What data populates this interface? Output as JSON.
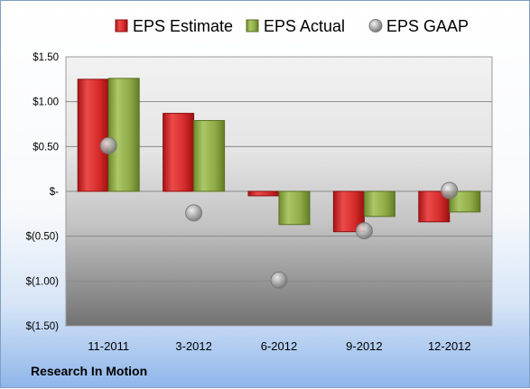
{
  "company_label": "Research In Motion",
  "chart_data": {
    "type": "bar",
    "categories": [
      "11-2011",
      "3-2012",
      "6-2012",
      "9-2012",
      "12-2012"
    ],
    "series": [
      {
        "name": "EPS Estimate",
        "kind": "bar",
        "color": "#d42a2a",
        "values": [
          1.25,
          0.87,
          -0.05,
          -0.45,
          -0.34
        ]
      },
      {
        "name": "EPS Actual",
        "kind": "bar",
        "color": "#8eab47",
        "values": [
          1.26,
          0.79,
          -0.37,
          -0.28,
          -0.23
        ]
      },
      {
        "name": "EPS GAAP",
        "kind": "marker",
        "color": "#a9a9a9",
        "values": [
          0.51,
          -0.24,
          -0.99,
          -0.44,
          0.01
        ]
      }
    ],
    "y_ticks": [
      {
        "value": 1.5,
        "label": "$1.50"
      },
      {
        "value": 1.0,
        "label": "$1.00"
      },
      {
        "value": 0.5,
        "label": "$0.50"
      },
      {
        "value": 0.0,
        "label": "$-"
      },
      {
        "value": -0.5,
        "label": "$(0.50)"
      },
      {
        "value": -1.0,
        "label": "$(1.00)"
      },
      {
        "value": -1.5,
        "label": "$(1.50)"
      }
    ],
    "ylim": [
      -1.5,
      1.5
    ],
    "grid": true,
    "legend_position": "top"
  }
}
